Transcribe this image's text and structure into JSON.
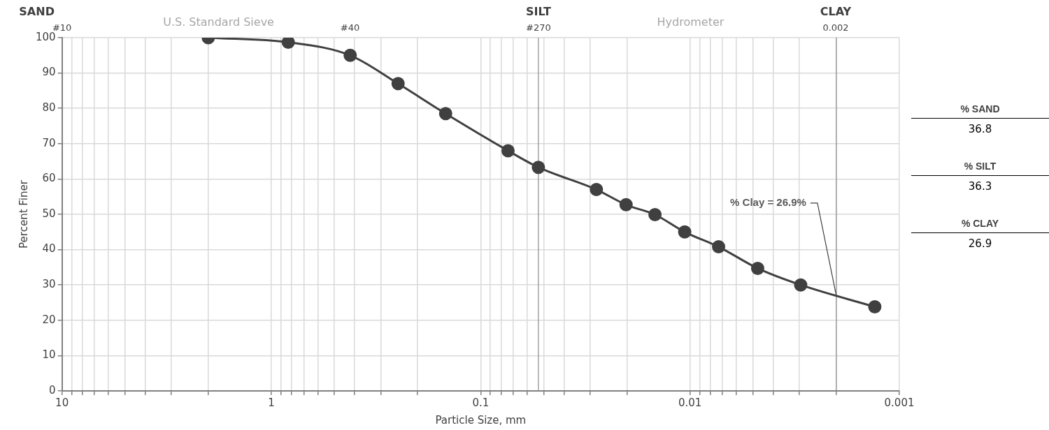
{
  "chart_data": {
    "type": "line",
    "xlabel": "Particle Size, mm",
    "ylabel": "Percent Finer",
    "x": [
      2.0,
      0.83,
      0.42,
      0.248,
      0.147,
      0.074,
      0.053,
      0.028,
      0.0202,
      0.0147,
      0.0106,
      0.0073,
      0.00475,
      0.00296,
      0.00131
    ],
    "series": [
      {
        "color": "#404040",
        "values": [
          100,
          98.7,
          95,
          87,
          78.5,
          68,
          63.3,
          57,
          52.7,
          49.9,
          45,
          40.8,
          34.7,
          30,
          23.8
        ]
      }
    ],
    "log": "x",
    "marker": "circle",
    "line_style": "solid",
    "grid": true,
    "legend": false,
    "xlim": [
      10,
      0.001
    ],
    "xticks": [
      10,
      {
        "value": 9,
        "label": null
      },
      {
        "value": 8,
        "label": null
      },
      {
        "value": 7,
        "label": null
      },
      {
        "value": 6,
        "label": null
      },
      {
        "value": 5,
        "label": null
      },
      {
        "value": 4,
        "label": null
      },
      {
        "value": 3,
        "label": null
      },
      {
        "value": 2,
        "label": null
      },
      1,
      {
        "value": 0.9,
        "label": null
      },
      {
        "value": 0.8,
        "label": null
      },
      {
        "value": 0.7,
        "label": null
      },
      {
        "value": 0.6,
        "label": null
      },
      {
        "value": 0.5,
        "label": null
      },
      {
        "value": 0.4,
        "label": null
      },
      {
        "value": 0.3,
        "label": null
      },
      {
        "value": 0.2,
        "label": null
      },
      0.1,
      {
        "value": 0.09,
        "label": null
      },
      {
        "value": 0.08,
        "label": null
      },
      {
        "value": 0.07,
        "label": null
      },
      {
        "value": 0.06,
        "label": null
      },
      {
        "value": 0.05,
        "label": null
      },
      {
        "value": 0.04,
        "label": null
      },
      {
        "value": 0.03,
        "label": null
      },
      {
        "value": 0.02,
        "label": null
      },
      0.01,
      {
        "value": 0.009,
        "label": null
      },
      {
        "value": 0.008,
        "label": null
      },
      {
        "value": 0.007,
        "label": null
      },
      {
        "value": 0.006,
        "label": null
      },
      {
        "value": 0.005,
        "label": null
      },
      {
        "value": 0.004,
        "label": null
      },
      {
        "value": 0.003,
        "label": null
      },
      {
        "value": 0.002,
        "label": null
      },
      0.001
    ],
    "ylim": [
      0,
      100
    ],
    "yticks": [
      0,
      10,
      20,
      30,
      40,
      50,
      60,
      70,
      80,
      90,
      100
    ],
    "ref_lines": [
      {
        "axis": "x",
        "value": 0.053,
        "color": "#8c8c8c"
      },
      {
        "axis": "x",
        "value": 0.002,
        "color": "#8c8c8c"
      }
    ],
    "annotations": [
      "SAND",
      "U.S. Standard Sieve",
      "SILT",
      "Hydrometer",
      "CLAY",
      "#10",
      "#40",
      "#270",
      "0.002",
      {
        "text": "% Clay = 26.9%",
        "x": 0.002,
        "y": 26.9
      },
      "% SAND",
      "36.8",
      "% SILT",
      "36.3",
      "% CLAY",
      "26.9"
    ]
  }
}
